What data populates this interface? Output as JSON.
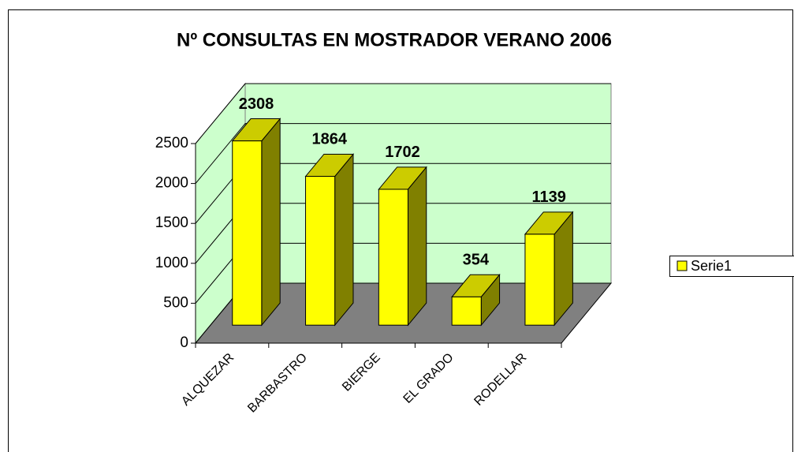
{
  "chart_data": {
    "type": "bar3d",
    "title": "Nº CONSULTAS EN MOSTRADOR VERANO 2006",
    "categories": [
      "ALQUEZAR",
      "BARBASTRO",
      "BIERGE",
      "EL GRADO",
      "RODELLAR"
    ],
    "series": [
      {
        "name": "Serie1",
        "color": "#ffff00",
        "values": [
          2308,
          1864,
          1702,
          354,
          1139
        ]
      }
    ],
    "ylim": [
      0,
      2500
    ],
    "yticks": [
      0,
      500,
      1000,
      1500,
      2000,
      2500
    ],
    "grid": true,
    "legend": "right"
  }
}
